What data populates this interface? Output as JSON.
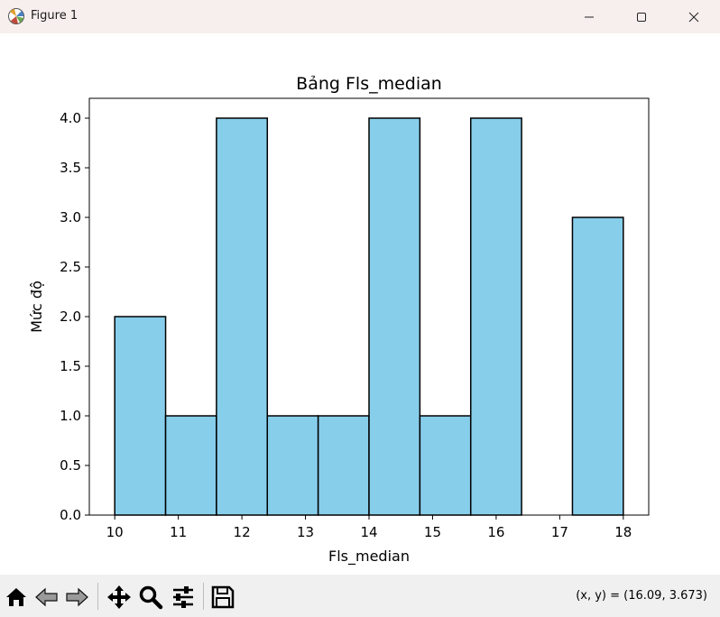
{
  "window": {
    "title": "Figure 1",
    "icons": [
      "matplotlib-icon",
      "minimize-icon",
      "maximize-icon",
      "close-icon"
    ]
  },
  "toolbar": {
    "icons": [
      "home-icon",
      "back-icon",
      "forward-icon",
      "pan-icon",
      "zoom-icon",
      "configure-subplots-icon",
      "save-icon"
    ],
    "coordinates": "(x, y) = (16.09, 3.673)"
  },
  "chart_data": {
    "type": "bar",
    "title": "Bảng Fls_median",
    "xlabel": "Fls_median",
    "ylabel": "Mức độ",
    "bins": [
      {
        "x0": 10.0,
        "x1": 10.8,
        "count": 2
      },
      {
        "x0": 10.8,
        "x1": 11.6,
        "count": 1
      },
      {
        "x0": 11.6,
        "x1": 12.4,
        "count": 4
      },
      {
        "x0": 12.4,
        "x1": 13.2,
        "count": 1
      },
      {
        "x0": 13.2,
        "x1": 14.0,
        "count": 1
      },
      {
        "x0": 14.0,
        "x1": 14.8,
        "count": 4
      },
      {
        "x0": 14.8,
        "x1": 15.6,
        "count": 1
      },
      {
        "x0": 15.6,
        "x1": 16.4,
        "count": 4
      },
      {
        "x0": 16.4,
        "x1": 17.2,
        "count": 0
      },
      {
        "x0": 17.2,
        "x1": 18.0,
        "count": 3
      }
    ],
    "xlim": [
      9.6,
      18.4
    ],
    "ylim": [
      0,
      4.2
    ],
    "xticks": [
      10,
      11,
      12,
      13,
      14,
      15,
      16,
      17,
      18
    ],
    "xtick_labels": [
      "10",
      "11",
      "12",
      "13",
      "14",
      "15",
      "16",
      "17",
      "18"
    ],
    "yticks": [
      0,
      0.5,
      1,
      1.5,
      2,
      2.5,
      3,
      3.5,
      4
    ],
    "ytick_labels": [
      "0.0",
      "0.5",
      "1.0",
      "1.5",
      "2.0",
      "2.5",
      "3.0",
      "3.5",
      "4.0"
    ],
    "bar_color": "#87ceeb",
    "edge_color": "#000000",
    "grid": false,
    "legend": "none"
  }
}
